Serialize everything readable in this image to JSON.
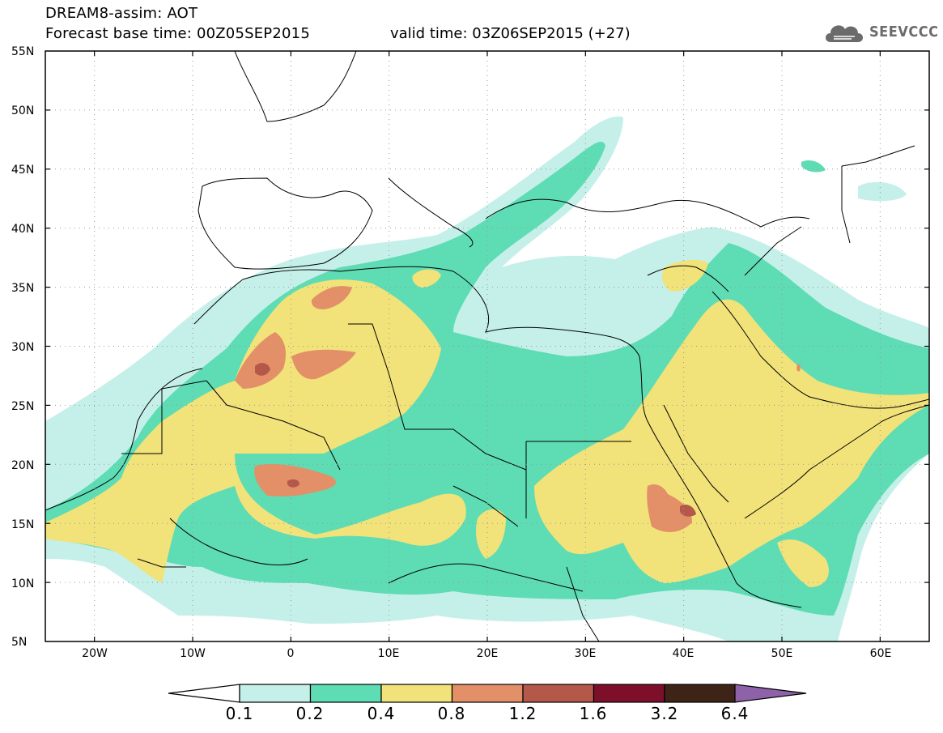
{
  "header": {
    "line1": "DREAM8-assim: AOT",
    "line2": "Forecast base time: 00Z05SEP2015",
    "valid": "valid time: 03Z06SEP2015 (+27)",
    "logo_text": "SEEVCCC"
  },
  "map": {
    "lon_range": [
      -25,
      65
    ],
    "lat_range": [
      5,
      55
    ],
    "lat_labels": [
      "55N",
      "50N",
      "45N",
      "40N",
      "35N",
      "30N",
      "25N",
      "20N",
      "15N",
      "10N",
      "5N"
    ],
    "lon_labels": [
      "20W",
      "10W",
      "0",
      "10E",
      "20E",
      "30E",
      "40E",
      "50E",
      "60E"
    ],
    "gridlines": "dotted"
  },
  "legend": {
    "thresholds": [
      "0.1",
      "0.2",
      "0.4",
      "0.8",
      "1.2",
      "1.6",
      "3.2",
      "6.4"
    ],
    "colors": [
      "#c5f0e9",
      "#5edcb4",
      "#f2e27a",
      "#e39068",
      "#b4584a",
      "#7e0f2b",
      "#3d2417",
      "#8e62a8"
    ],
    "below_color": "#ffffff",
    "above_color": "#8e62a8"
  }
}
